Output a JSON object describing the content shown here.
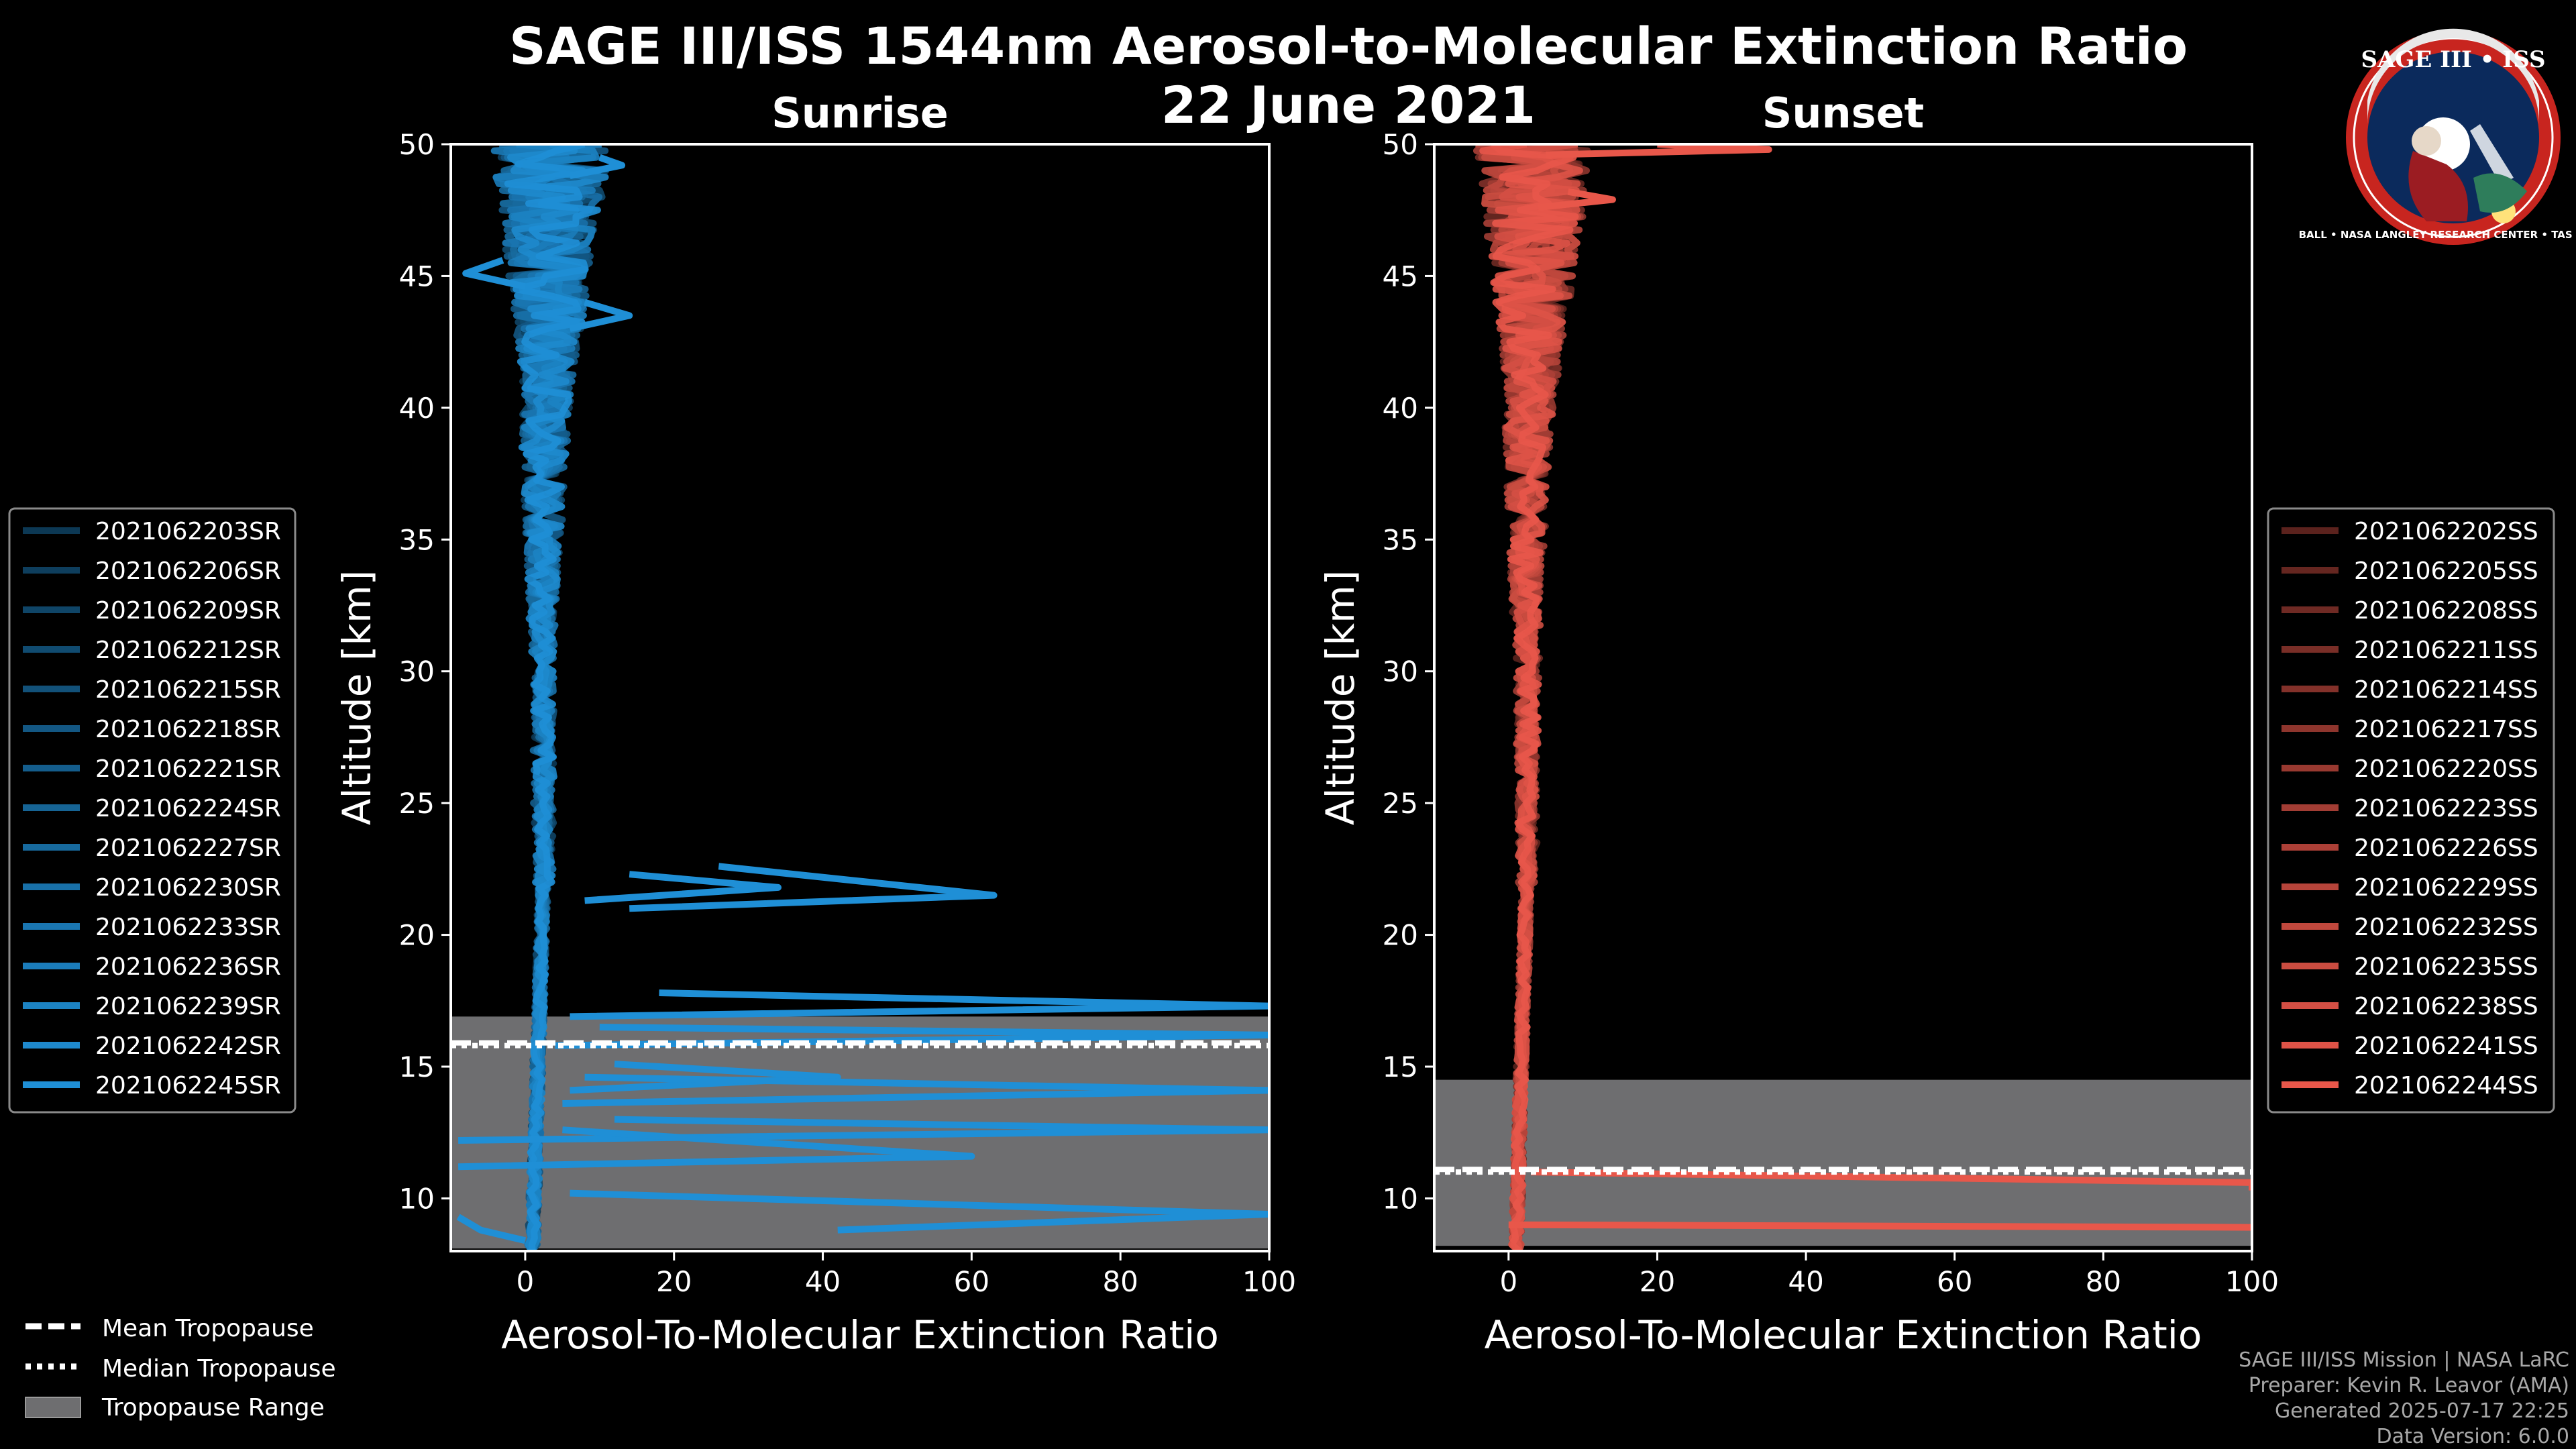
{
  "title_line1": "SAGE III/ISS 1544nm Aerosol-to-Molecular Extinction Ratio",
  "title_line2": "22 June 2021",
  "credits": [
    "SAGE III/ISS Mission | NASA LaRC",
    "Preparer: Kevin R. Leavor (AMA)",
    "Generated 2025-07-17 22:25",
    "Data Version: 6.0.0"
  ],
  "logo": {
    "text_top": "SAGE III • ISS",
    "text_ring": "BALL • NASA LANGLEY RESEARCH CENTER • TAS • ESA"
  },
  "global_legend": [
    {
      "label": "Mean Tropopause",
      "style": "dashed"
    },
    {
      "label": "Median Tropopause",
      "style": "dotted"
    },
    {
      "label": "Tropopause Range",
      "style": "patch"
    }
  ],
  "colors": {
    "sunrise": "#1f8fd6",
    "sunset": "#e8574a",
    "trop_range": "#6e6e70",
    "background": "#000000"
  },
  "chart_data": [
    {
      "type": "line",
      "title": "Sunrise",
      "xlabel": "Aerosol-To-Molecular Extinction Ratio",
      "ylabel": "Altitude [km]",
      "xlim": [
        -10,
        100
      ],
      "ylim": [
        8,
        50
      ],
      "xticks": [
        0,
        20,
        40,
        60,
        80,
        100
      ],
      "yticks": [
        10,
        15,
        20,
        25,
        30,
        35,
        40,
        45,
        50
      ],
      "tropopause": {
        "range": [
          8.1,
          16.9
        ],
        "mean": 15.9,
        "median": 15.8
      },
      "legend": [
        "2021062203SR",
        "2021062206SR",
        "2021062209SR",
        "2021062212SR",
        "2021062215SR",
        "2021062218SR",
        "2021062221SR",
        "2021062224SR",
        "2021062227SR",
        "2021062230SR",
        "2021062233SR",
        "2021062236SR",
        "2021062239SR",
        "2021062242SR",
        "2021062245SR"
      ],
      "spikes": [
        {
          "alt": [
            22.6,
            21.5,
            21.0
          ],
          "x": [
            26,
            63,
            14
          ]
        },
        {
          "alt": [
            22.3,
            21.8,
            21.3
          ],
          "x": [
            14,
            34,
            8
          ]
        },
        {
          "alt": [
            17.8,
            17.3,
            16.9
          ],
          "x": [
            18,
            100,
            6
          ]
        },
        {
          "alt": [
            16.5,
            16.2,
            15.8
          ],
          "x": [
            10,
            100,
            4
          ]
        },
        {
          "alt": [
            15.1,
            14.6,
            14.1
          ],
          "x": [
            12,
            42,
            6
          ]
        },
        {
          "alt": [
            14.6,
            14.1,
            13.6
          ],
          "x": [
            8,
            100,
            5
          ]
        },
        {
          "alt": [
            13.0,
            12.6,
            12.2
          ],
          "x": [
            12,
            100,
            -9
          ]
        },
        {
          "alt": [
            12.6,
            11.6,
            11.2
          ],
          "x": [
            5,
            60,
            -9
          ]
        },
        {
          "alt": [
            10.2,
            9.4,
            8.8
          ],
          "x": [
            6,
            100,
            42
          ]
        },
        {
          "alt": [
            9.3,
            8.8,
            8.4
          ],
          "x": [
            -9,
            -6,
            0
          ]
        },
        {
          "alt": [
            44.0,
            43.5,
            43.0
          ],
          "x": [
            8,
            14,
            6
          ]
        },
        {
          "alt": [
            49.5,
            49.2,
            48.8
          ],
          "x": [
            10,
            13,
            6
          ]
        },
        {
          "alt": [
            45.6,
            45.1,
            44.6
          ],
          "x": [
            -3,
            -8,
            0
          ]
        }
      ]
    },
    {
      "type": "line",
      "title": "Sunset",
      "xlabel": "Aerosol-To-Molecular Extinction Ratio",
      "ylabel": "Altitude [km]",
      "xlim": [
        -10,
        100
      ],
      "ylim": [
        8,
        50
      ],
      "xticks": [
        0,
        20,
        40,
        60,
        80,
        100
      ],
      "yticks": [
        10,
        15,
        20,
        25,
        30,
        35,
        40,
        45,
        50
      ],
      "tropopause": {
        "range": [
          8.2,
          14.5
        ],
        "mean": 11.1,
        "median": 11.0
      },
      "legend": [
        "2021062202SS",
        "2021062205SS",
        "2021062208SS",
        "2021062211SS",
        "2021062214SS",
        "2021062217SS",
        "2021062220SS",
        "2021062223SS",
        "2021062226SS",
        "2021062229SS",
        "2021062232SS",
        "2021062235SS",
        "2021062238SS",
        "2021062241SS",
        "2021062244SS"
      ],
      "spikes": [
        {
          "alt": [
            50.0,
            49.8,
            49.6
          ],
          "x": [
            20,
            35,
            5
          ]
        },
        {
          "alt": [
            48.2,
            47.9,
            47.6
          ],
          "x": [
            8,
            14,
            4
          ]
        },
        {
          "alt": [
            11.0,
            10.6,
            10.3
          ],
          "x": [
            3,
            100,
            100
          ]
        },
        {
          "alt": [
            9.0,
            8.9,
            8.8
          ],
          "x": [
            0,
            100,
            100
          ]
        }
      ]
    }
  ]
}
